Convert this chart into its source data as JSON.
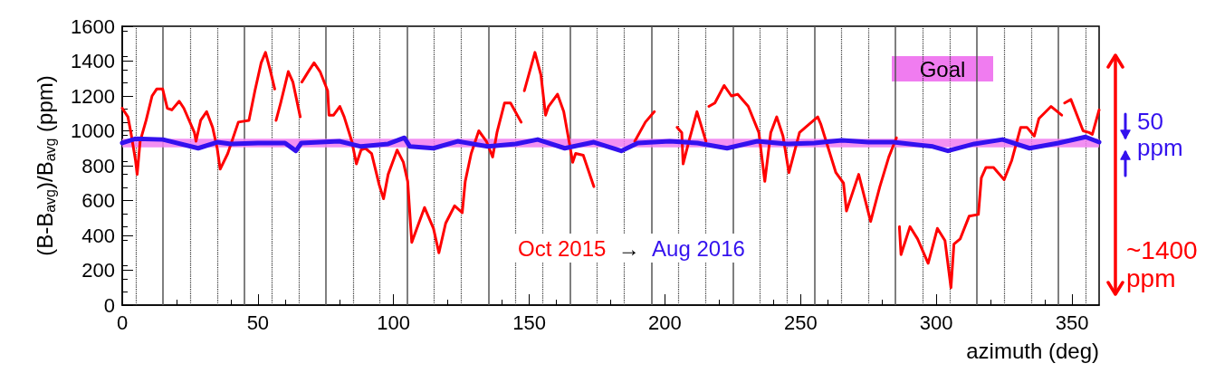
{
  "chart_data": {
    "type": "line",
    "ylabel": "(B-B$_{avg}$)/B$_{avg}$ (ppm)",
    "xlabel": "azimuth (deg)",
    "xlim": [
      0,
      360
    ],
    "xticks": [
      0,
      50,
      100,
      150,
      200,
      250,
      300,
      350
    ],
    "ylim": [
      0,
      1600
    ],
    "yticks": [
      0,
      200,
      400,
      600,
      800,
      1000,
      1200,
      1400,
      1600
    ],
    "grid": false,
    "legend": "right",
    "series": [
      {
        "name": "Oct 2015",
        "color": "#ff0000",
        "x": [
          0,
          2.1,
          3.2,
          4.9,
          5.5,
          6.6,
          8.8,
          11,
          12.7,
          14.9,
          16.6,
          18.3,
          21,
          22.7,
          26.6,
          27.2,
          28.9,
          31.1,
          33.3,
          35,
          36.1,
          38.9,
          42.8,
          46.7,
          48.9,
          51.2,
          52.8,
          54.5,
          56.2,
          56.5,
          56.7,
          58.4,
          61.2,
          62.9,
          65.6,
          65.9,
          66.2,
          69,
          70.7,
          72.9,
          75.7,
          76.2,
          77.9,
          80.2,
          81.8,
          84.6,
          86.3,
          88,
          89.6,
          91.9,
          94.7,
          96.3,
          98,
          101.3,
          103.6,
          105.2,
          106.7,
          111.4,
          114.7,
          116.7,
          119.2,
          122.5,
          125.3,
          126.4,
          128.6,
          131.4,
          134.2,
          136.5,
          138.1,
          140.9,
          143.1,
          147,
          147.6,
          148.2,
          152.1,
          154.3,
          156,
          157.1,
          160.4,
          162.7,
          164.9,
          166,
          167.1,
          169.9,
          173.8,
          181,
          188.9,
          192.8,
          196.1,
          200,
          204.5,
          206.2,
          206.7,
          209,
          211.8,
          215.1,
          215.6,
          216.2,
          218.4,
          221.8,
          224.5,
          226.8,
          230.7,
          234.6,
          236.8,
          239,
          241.2,
          243.5,
          245.7,
          249.6,
          251.8,
          256.3,
          257.4,
          260.2,
          263,
          265.8,
          266.9,
          271.4,
          275.8,
          279.2,
          282.5,
          285.3,
          285.8,
          286.4,
          287,
          290.3,
          293.1,
          297,
          300.4,
          303.2,
          305.4,
          306.5,
          308.8,
          312.1,
          315.5,
          316.6,
          318.3,
          321.1,
          325,
          327.8,
          331.1,
          333.4,
          336.1,
          337.8,
          342.3,
          346.2,
          346.7,
          347.3,
          349.6,
          354.1,
          356.3,
          357.5,
          360
        ],
        "values": [
          1130,
          1080,
          990,
          830,
          750,
          940,
          1060,
          1200,
          1240,
          1240,
          1130,
          1120,
          1170,
          1130,
          990,
          940,
          1060,
          1110,
          1020,
          900,
          780,
          870,
          1050,
          1060,
          1230,
          1390,
          1450,
          1350,
          1240,
          null,
          1060,
          1160,
          1340,
          1280,
          1080,
          null,
          1280,
          1350,
          1390,
          1340,
          1230,
          1090,
          1090,
          1140,
          1080,
          940,
          810,
          890,
          900,
          870,
          690,
          610,
          750,
          890,
          820,
          710,
          360,
          560,
          440,
          300,
          470,
          570,
          530,
          710,
          870,
          1000,
          940,
          850,
          990,
          1160,
          1160,
          1050,
          null,
          1230,
          1450,
          1320,
          1090,
          1140,
          1210,
          1110,
          920,
          820,
          870,
          860,
          680,
          null,
          940,
          1050,
          1110,
          null,
          1020,
          990,
          810,
          950,
          1110,
          940,
          null,
          1140,
          1160,
          1260,
          1200,
          1210,
          1140,
          990,
          710,
          990,
          1080,
          970,
          760,
          990,
          1020,
          1080,
          1040,
          900,
          760,
          700,
          540,
          750,
          480,
          680,
          850,
          960,
          null,
          450,
          290,
          450,
          380,
          240,
          440,
          370,
          100,
          350,
          380,
          510,
          520,
          730,
          790,
          790,
          720,
          830,
          1020,
          1020,
          970,
          1070,
          1140,
          1090,
          null,
          1160,
          1180,
          1000,
          990,
          980,
          1120
        ]
      },
      {
        "name": "Aug 2016",
        "color": "#3311ee",
        "x": [
          0,
          5,
          15,
          28,
          35,
          40,
          50,
          60,
          64,
          66,
          80,
          88,
          98,
          104,
          106,
          114.7,
          123.6,
          134.7,
          145,
          153.1,
          163.1,
          173.8,
          183.9,
          190,
          201.7,
          212,
          222.9,
          234,
          245,
          255,
          265.2,
          275,
          284.2,
          298.7,
          304.3,
          314,
          324.4,
          334.4,
          345,
          355,
          360
        ],
        "values": [
          930,
          955,
          950,
          900,
          935,
          925,
          930,
          930,
          885,
          930,
          940,
          910,
          925,
          960,
          910,
          900,
          940,
          910,
          925,
          950,
          900,
          935,
          885,
          930,
          940,
          930,
          900,
          940,
          925,
          930,
          945,
          935,
          935,
          910,
          885,
          925,
          950,
          900,
          930,
          965,
          935
        ]
      }
    ],
    "bands": [
      {
        "axis": "y",
        "from": 905,
        "to": 955,
        "label": "Goal",
        "color": "#f07cf0"
      }
    ],
    "ref_lines": [
      {
        "axis": "x",
        "value": 5,
        "line_style": "dotted"
      },
      {
        "axis": "x",
        "value": 15,
        "line_style": "solid"
      },
      {
        "axis": "x",
        "value": 25,
        "line_style": "dotted"
      },
      {
        "axis": "x",
        "value": 35,
        "line_style": "dotted"
      },
      {
        "axis": "x",
        "value": 45,
        "line_style": "solid"
      },
      {
        "axis": "x",
        "value": 55,
        "line_style": "dotted"
      },
      {
        "axis": "x",
        "value": 65,
        "line_style": "dotted"
      },
      {
        "axis": "x",
        "value": 75,
        "line_style": "solid"
      },
      {
        "axis": "x",
        "value": 85,
        "line_style": "dotted"
      },
      {
        "axis": "x",
        "value": 95,
        "line_style": "dotted"
      },
      {
        "axis": "x",
        "value": 105,
        "line_style": "solid"
      },
      {
        "axis": "x",
        "value": 115,
        "line_style": "dotted"
      },
      {
        "axis": "x",
        "value": 125,
        "line_style": "dotted"
      },
      {
        "axis": "x",
        "value": 135,
        "line_style": "solid"
      },
      {
        "axis": "x",
        "value": 145,
        "line_style": "dotted"
      },
      {
        "axis": "x",
        "value": 155,
        "line_style": "dotted"
      },
      {
        "axis": "x",
        "value": 165,
        "line_style": "solid"
      },
      {
        "axis": "x",
        "value": 175,
        "line_style": "dotted"
      },
      {
        "axis": "x",
        "value": 185,
        "line_style": "dotted"
      },
      {
        "axis": "x",
        "value": 195,
        "line_style": "solid"
      },
      {
        "axis": "x",
        "value": 205,
        "line_style": "dotted"
      },
      {
        "axis": "x",
        "value": 215,
        "line_style": "dotted"
      },
      {
        "axis": "x",
        "value": 225,
        "line_style": "solid"
      },
      {
        "axis": "x",
        "value": 235,
        "line_style": "dotted"
      },
      {
        "axis": "x",
        "value": 245,
        "line_style": "dotted"
      },
      {
        "axis": "x",
        "value": 255,
        "line_style": "solid"
      },
      {
        "axis": "x",
        "value": 265,
        "line_style": "dotted"
      },
      {
        "axis": "x",
        "value": 275,
        "line_style": "dotted"
      },
      {
        "axis": "x",
        "value": 285,
        "line_style": "solid"
      },
      {
        "axis": "x",
        "value": 295,
        "line_style": "dotted"
      },
      {
        "axis": "x",
        "value": 305,
        "line_style": "dotted"
      },
      {
        "axis": "x",
        "value": 315,
        "line_style": "solid"
      },
      {
        "axis": "x",
        "value": 325,
        "line_style": "dotted"
      },
      {
        "axis": "x",
        "value": 335,
        "line_style": "dotted"
      },
      {
        "axis": "x",
        "value": 345,
        "line_style": "solid"
      },
      {
        "axis": "x",
        "value": 355,
        "line_style": "dotted"
      }
    ],
    "annotations": [
      "→",
      "50 ppm",
      "~1400 ppm"
    ]
  }
}
